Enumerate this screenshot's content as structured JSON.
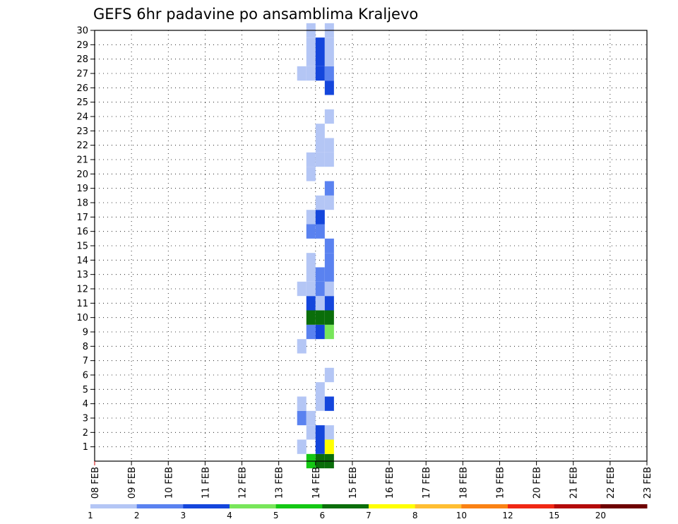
{
  "chart_data": {
    "type": "heatmap",
    "title": "GEFS 6hr padavine po ansamblima Kraljevo",
    "xlabel": "",
    "ylabel": "",
    "y_range": [
      0,
      30
    ],
    "y_ticks": [
      1,
      2,
      3,
      4,
      5,
      6,
      7,
      8,
      9,
      10,
      11,
      12,
      13,
      14,
      15,
      16,
      17,
      18,
      19,
      20,
      21,
      22,
      23,
      24,
      25,
      26,
      27,
      28,
      29,
      30
    ],
    "x_range_days": [
      "08 FEB",
      "23 FEB"
    ],
    "x_ticks": [
      "08 FEB",
      "09 FEB",
      "10 FEB",
      "11 FEB",
      "12 FEB",
      "13 FEB",
      "14 FEB",
      "15 FEB",
      "16 FEB",
      "17 FEB",
      "18 FEB",
      "19 FEB",
      "20 FEB",
      "21 FEB",
      "22 FEB",
      "23 FEB"
    ],
    "time_step_hours": 6,
    "grid": "dotted",
    "legend": {
      "placement": "bottom",
      "levels": [
        "1",
        "2",
        "3",
        "4",
        "5",
        "6",
        "7",
        "8",
        "10",
        "12",
        "15",
        "20"
      ],
      "colors": [
        "#b4c6f5",
        "#5a82f0",
        "#1446dc",
        "#78e65a",
        "#14c814",
        "#0a6e0a",
        "#ffff00",
        "#ffbe32",
        "#fa8214",
        "#f02814",
        "#b40a0a",
        "#6e0000"
      ]
    },
    "cells": [
      [
        "13 FEB 12:00",
        1,
        1
      ],
      [
        "13 FEB 12:00",
        3,
        2
      ],
      [
        "13 FEB 12:00",
        4,
        1
      ],
      [
        "13 FEB 12:00",
        8,
        1
      ],
      [
        "13 FEB 12:00",
        12,
        1
      ],
      [
        "13 FEB 12:00",
        27,
        1
      ],
      [
        "13 FEB 18:00",
        0,
        5
      ],
      [
        "13 FEB 18:00",
        2,
        1
      ],
      [
        "13 FEB 18:00",
        3,
        1
      ],
      [
        "13 FEB 18:00",
        9,
        2
      ],
      [
        "13 FEB 18:00",
        10,
        6
      ],
      [
        "13 FEB 18:00",
        11,
        3
      ],
      [
        "13 FEB 18:00",
        12,
        1
      ],
      [
        "13 FEB 18:00",
        13,
        1
      ],
      [
        "13 FEB 18:00",
        14,
        1
      ],
      [
        "13 FEB 18:00",
        16,
        2
      ],
      [
        "13 FEB 18:00",
        17,
        1
      ],
      [
        "13 FEB 18:00",
        20,
        1
      ],
      [
        "13 FEB 18:00",
        21,
        1
      ],
      [
        "13 FEB 18:00",
        27,
        1
      ],
      [
        "13 FEB 18:00",
        28,
        1
      ],
      [
        "13 FEB 18:00",
        29,
        1
      ],
      [
        "13 FEB 18:00",
        30,
        1
      ],
      [
        "14 FEB 00:00",
        0,
        6
      ],
      [
        "14 FEB 00:00",
        1,
        3
      ],
      [
        "14 FEB 00:00",
        2,
        3
      ],
      [
        "14 FEB 00:00",
        4,
        1
      ],
      [
        "14 FEB 00:00",
        5,
        1
      ],
      [
        "14 FEB 00:00",
        9,
        3
      ],
      [
        "14 FEB 00:00",
        10,
        6
      ],
      [
        "14 FEB 00:00",
        11,
        1
      ],
      [
        "14 FEB 00:00",
        12,
        2
      ],
      [
        "14 FEB 00:00",
        13,
        2
      ],
      [
        "14 FEB 00:00",
        16,
        2
      ],
      [
        "14 FEB 00:00",
        17,
        3
      ],
      [
        "14 FEB 00:00",
        18,
        1
      ],
      [
        "14 FEB 00:00",
        21,
        1
      ],
      [
        "14 FEB 00:00",
        22,
        1
      ],
      [
        "14 FEB 00:00",
        23,
        1
      ],
      [
        "14 FEB 00:00",
        27,
        3
      ],
      [
        "14 FEB 00:00",
        28,
        3
      ],
      [
        "14 FEB 00:00",
        29,
        3
      ],
      [
        "14 FEB 06:00",
        0,
        6
      ],
      [
        "14 FEB 06:00",
        1,
        7
      ],
      [
        "14 FEB 06:00",
        2,
        1
      ],
      [
        "14 FEB 06:00",
        4,
        3
      ],
      [
        "14 FEB 06:00",
        6,
        1
      ],
      [
        "14 FEB 06:00",
        9,
        4
      ],
      [
        "14 FEB 06:00",
        10,
        6
      ],
      [
        "14 FEB 06:00",
        11,
        3
      ],
      [
        "14 FEB 06:00",
        12,
        1
      ],
      [
        "14 FEB 06:00",
        13,
        2
      ],
      [
        "14 FEB 06:00",
        14,
        2
      ],
      [
        "14 FEB 06:00",
        15,
        2
      ],
      [
        "14 FEB 06:00",
        18,
        1
      ],
      [
        "14 FEB 06:00",
        19,
        2
      ],
      [
        "14 FEB 06:00",
        21,
        1
      ],
      [
        "14 FEB 06:00",
        22,
        1
      ],
      [
        "14 FEB 06:00",
        24,
        1
      ],
      [
        "14 FEB 06:00",
        26,
        3
      ],
      [
        "14 FEB 06:00",
        27,
        2
      ],
      [
        "14 FEB 06:00",
        28,
        1
      ],
      [
        "14 FEB 06:00",
        29,
        1
      ],
      [
        "14 FEB 06:00",
        30,
        1
      ]
    ]
  }
}
